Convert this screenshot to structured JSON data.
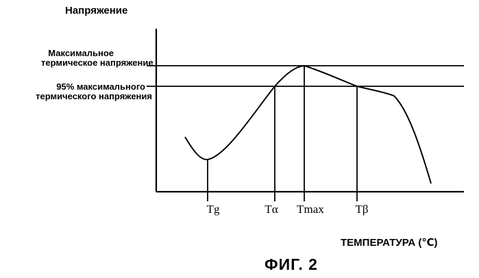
{
  "diagram": {
    "y_axis_label": "Напряжение",
    "x_axis_label": "ТЕМПЕРАТУРА (℃)",
    "max_stress_label_line1": "Максимальное",
    "max_stress_label_line2": "термическое напряжение",
    "pct95_label_line1": "95% максимального",
    "pct95_label_line2": "термического напряжения",
    "ticks": {
      "tg": "Tg",
      "talpha": "Tα",
      "tmax": "Tmax",
      "tbeta": "Tβ"
    },
    "caption": "ФИГ. 2"
  },
  "colors": {
    "line": "#000000",
    "background": "#ffffff"
  }
}
